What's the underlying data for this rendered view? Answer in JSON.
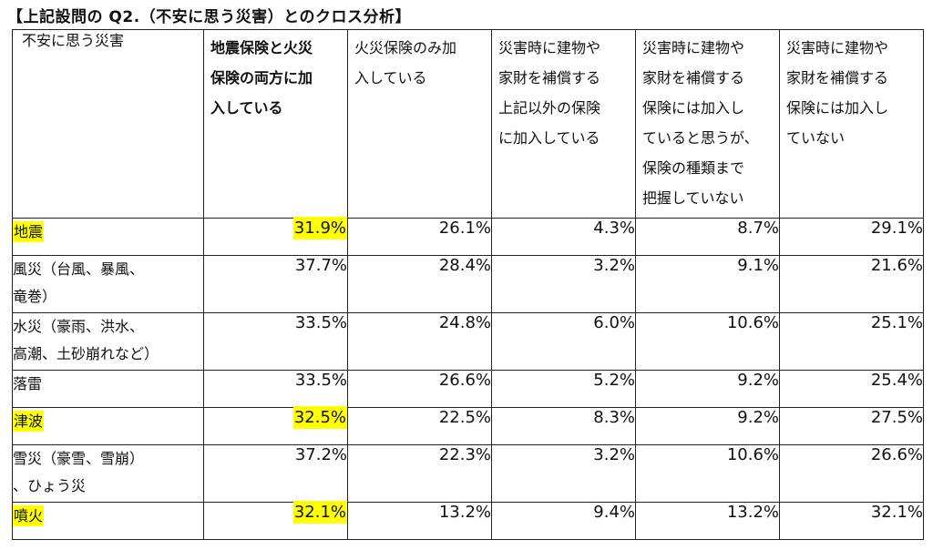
{
  "title": "【上記設問の Q2.（不安に思う災害）とのクロス分析】",
  "corner_label": "不安に思う災害",
  "columns": [
    {
      "label": "地震保険と火災\n保険の両方に加\n入している",
      "bold": true
    },
    {
      "label": "火災保険のみ加\n入している",
      "bold": false
    },
    {
      "label": "災害時に建物や\n家財を補償する\n上記以外の保険\nに加入している",
      "bold": false
    },
    {
      "label": "災害時に建物や\n家財を補償する\n保険には加入し\nていると思うが、\n保険の種類まで\n把握していない",
      "bold": false
    },
    {
      "label": "災害時に建物や\n家財を補償する\n保険には加入し\nていない",
      "bold": false
    }
  ],
  "highlight_color": "#ffff00",
  "rows": [
    {
      "label": "地震",
      "label_highlight": true,
      "double": false,
      "values": [
        "31.9%",
        "26.1%",
        "4.3%",
        "8.7%",
        "29.1%"
      ],
      "highlight": [
        true,
        false,
        false,
        false,
        false
      ]
    },
    {
      "label": "風災（台風、暴風、\n竜巻）",
      "label_highlight": false,
      "double": true,
      "values": [
        "37.7%",
        "28.4%",
        "3.2%",
        "9.1%",
        "21.6%"
      ],
      "highlight": [
        false,
        false,
        false,
        false,
        false
      ]
    },
    {
      "label": "水災（豪雨、洪水、\n高潮、土砂崩れなど）",
      "label_highlight": false,
      "double": true,
      "values": [
        "33.5%",
        "24.8%",
        "6.0%",
        "10.6%",
        "25.1%"
      ],
      "highlight": [
        false,
        false,
        false,
        false,
        false
      ]
    },
    {
      "label": "落雷",
      "label_highlight": false,
      "double": false,
      "values": [
        "33.5%",
        "26.6%",
        "5.2%",
        "9.2%",
        "25.4%"
      ],
      "highlight": [
        false,
        false,
        false,
        false,
        false
      ]
    },
    {
      "label": "津波",
      "label_highlight": true,
      "double": false,
      "values": [
        "32.5%",
        "22.5%",
        "8.3%",
        "9.2%",
        "27.5%"
      ],
      "highlight": [
        true,
        false,
        false,
        false,
        false
      ]
    },
    {
      "label": "雪災（豪雪、雪崩）\n、ひょう災",
      "label_highlight": false,
      "double": true,
      "values": [
        "37.2%",
        "22.3%",
        "3.2%",
        "10.6%",
        "26.6%"
      ],
      "highlight": [
        false,
        false,
        false,
        false,
        false
      ]
    },
    {
      "label": "噴火",
      "label_highlight": true,
      "double": false,
      "values": [
        "32.1%",
        "13.2%",
        "9.4%",
        "13.2%",
        "32.1%"
      ],
      "highlight": [
        true,
        false,
        false,
        false,
        false
      ]
    }
  ]
}
